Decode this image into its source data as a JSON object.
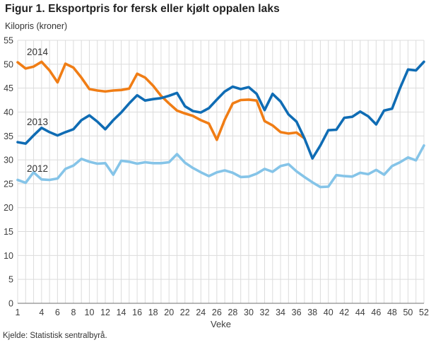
{
  "title": "Figur 1. Eksportpris for fersk eller kjølt oppalen laks",
  "subtitle": "Kilopris (kroner)",
  "source": "Kjelde: Statistisk sentralbyrå.",
  "chart_data": {
    "type": "line",
    "title": "Figur 1. Eksportpris for fersk eller kjølt oppalen laks",
    "ylabel": "Kilopris (kroner)",
    "xlabel": "Veke",
    "xlim": [
      1,
      52
    ],
    "ylim": [
      0,
      55
    ],
    "grid": true,
    "gridline_color": "#dcdcdc",
    "axis_color": "#8c8c8c",
    "tick_label_color": "#3d3d3d",
    "x_ticks": [
      1,
      4,
      6,
      8,
      10,
      12,
      14,
      16,
      18,
      20,
      22,
      24,
      26,
      28,
      30,
      32,
      34,
      36,
      38,
      40,
      42,
      44,
      46,
      48,
      50,
      52
    ],
    "y_ticks": [
      0,
      5,
      10,
      15,
      20,
      25,
      30,
      35,
      40,
      45,
      50,
      55
    ],
    "legend_position": "inline-labels",
    "series": [
      {
        "name": "2014",
        "color": "#F07D15",
        "x_start": 1,
        "values": [
          50.4,
          49.1,
          49.5,
          50.5,
          48.7,
          46.2,
          50.1,
          49.3,
          47.2,
          44.8,
          44.5,
          44.3,
          44.5,
          44.6,
          44.9,
          48.0,
          47.2,
          45.5,
          43.4,
          41.8,
          40.3,
          39.7,
          39.2,
          38.3,
          37.6,
          34.2,
          38.4,
          41.8,
          42.5,
          42.6,
          42.4,
          38.1,
          37.2,
          35.8,
          35.5,
          35.7,
          34.5
        ]
      },
      {
        "name": "2013",
        "color": "#0F6CB4",
        "x_start": 1,
        "values": [
          33.7,
          33.4,
          35.1,
          36.7,
          35.8,
          35.1,
          35.8,
          36.4,
          38.3,
          39.3,
          38.0,
          36.4,
          38.3,
          39.9,
          41.8,
          43.5,
          42.4,
          42.7,
          42.9,
          43.4,
          44.0,
          41.2,
          40.2,
          39.9,
          40.8,
          42.6,
          44.3,
          45.3,
          44.8,
          45.2,
          43.8,
          40.4,
          43.8,
          42.2,
          39.5,
          38.0,
          34.5,
          30.3,
          33.0,
          36.2,
          36.3,
          38.8,
          39.0,
          40.1,
          39.1,
          37.4,
          40.3,
          40.7,
          45.0,
          48.9,
          48.7,
          50.5
        ]
      },
      {
        "name": "2012",
        "color": "#85C4E8",
        "x_start": 1,
        "values": [
          25.8,
          25.2,
          27.4,
          25.9,
          25.8,
          26.1,
          28.1,
          28.8,
          30.2,
          29.6,
          29.2,
          29.3,
          26.9,
          29.8,
          29.6,
          29.2,
          29.5,
          29.3,
          29.3,
          29.5,
          31.2,
          29.4,
          28.3,
          27.4,
          26.6,
          27.4,
          27.8,
          27.3,
          26.4,
          26.5,
          27.1,
          28.1,
          27.5,
          28.7,
          29.1,
          27.6,
          26.4,
          25.3,
          24.3,
          24.4,
          26.8,
          26.6,
          26.5,
          27.3,
          27.0,
          27.9,
          26.9,
          28.7,
          29.5,
          30.5,
          29.9,
          33.0
        ]
      }
    ]
  }
}
